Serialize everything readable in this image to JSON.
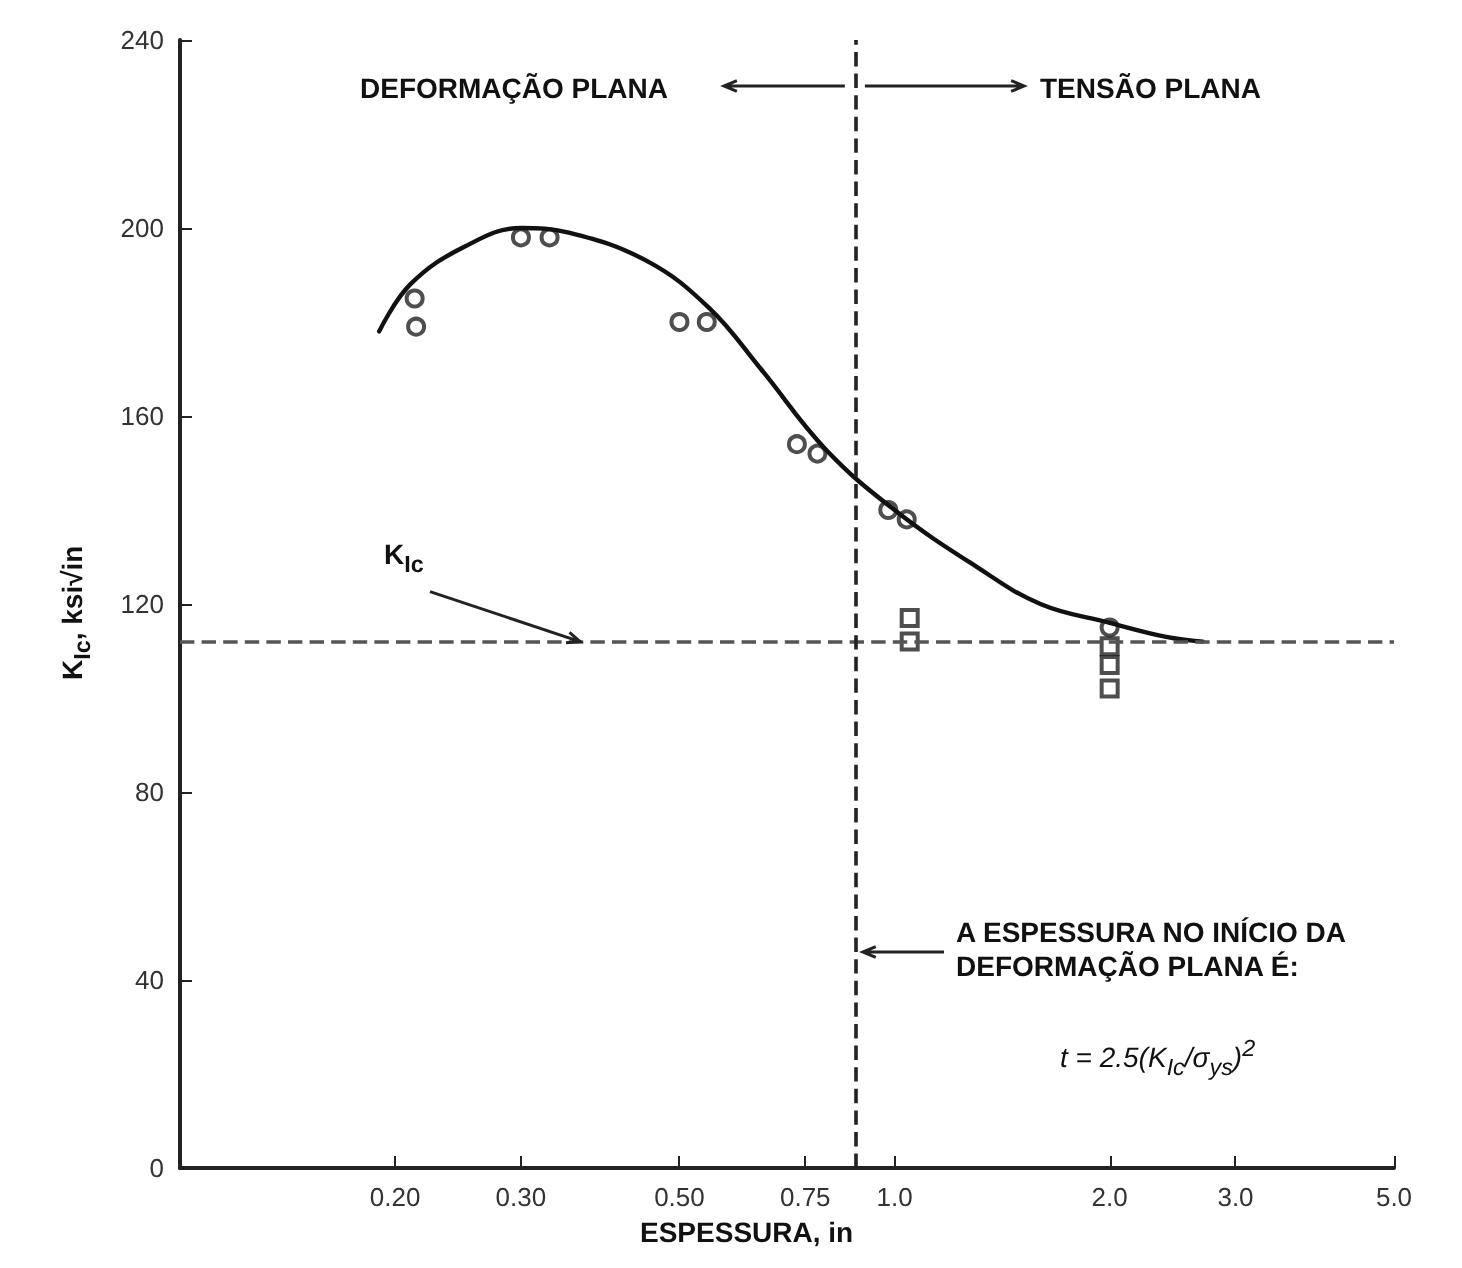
{
  "chart_data": {
    "type": "scatter",
    "xlabel": "ESPESSURA, in",
    "ylabel": "K$_{Ic}$, ksi√in",
    "log": "x",
    "xlim": [
      0.1,
      5.0
    ],
    "xticks": [
      {
        "value": 0.2,
        "label": "0.20"
      },
      {
        "value": 0.3,
        "label": "0.30"
      },
      {
        "value": 0.5,
        "label": "0.50"
      },
      {
        "value": 0.75,
        "label": "0.75"
      },
      {
        "value": 1.0,
        "label": "1.0"
      },
      {
        "value": 2.0,
        "label": "2.0"
      },
      {
        "value": 3.0,
        "label": "3.0"
      },
      {
        "value": 5.0,
        "label": "5.0"
      }
    ],
    "ylim": [
      0,
      240
    ],
    "yticks": [
      0,
      40,
      80,
      120,
      160,
      200,
      240
    ],
    "grid": false,
    "series": [
      {
        "marker": "circle",
        "color": "#222222",
        "x": [
          0.213,
          0.214,
          0.3,
          0.329,
          0.5,
          0.546,
          0.73,
          0.78,
          0.98,
          1.04,
          2.0
        ],
        "values": [
          185,
          179,
          198,
          198,
          180,
          180,
          154,
          152,
          140,
          138,
          115
        ]
      },
      {
        "marker": "square",
        "color": "#222222",
        "x": [
          1.05,
          1.05,
          2.0,
          2.0,
          2.0
        ],
        "values": [
          117,
          112,
          111,
          107,
          102
        ]
      },
      {
        "type": "line",
        "marker": "none",
        "line_style": "solid",
        "color": "#111111",
        "x": [
          0.19,
          0.21,
          0.25,
          0.3,
          0.35,
          0.45,
          0.55,
          0.65,
          0.8,
          1.0,
          1.3,
          1.6,
          2.0,
          2.4,
          2.7
        ],
        "values": [
          178,
          188,
          196,
          200,
          199,
          193,
          183,
          170,
          153,
          140,
          128,
          120,
          116,
          113,
          112
        ]
      }
    ],
    "ref_lines": [
      {
        "axis": "y",
        "value": 112,
        "label": "K$_{Ic}$",
        "line_style": "dashed",
        "color": "#555555"
      },
      {
        "axis": "x",
        "value": 0.88,
        "label": null,
        "line_style": "dashed",
        "color": "#222222"
      }
    ],
    "annotations": [
      "DEFORMAÇÃO PLANA",
      "TENSÃO PLANA",
      "A ESPESSURA NO INÍCIO DA DEFORMAÇÃO PLANA É:",
      "t = 2.5(K$_{Ic}$/σ$_{ys}$)$^{2}$"
    ]
  }
}
